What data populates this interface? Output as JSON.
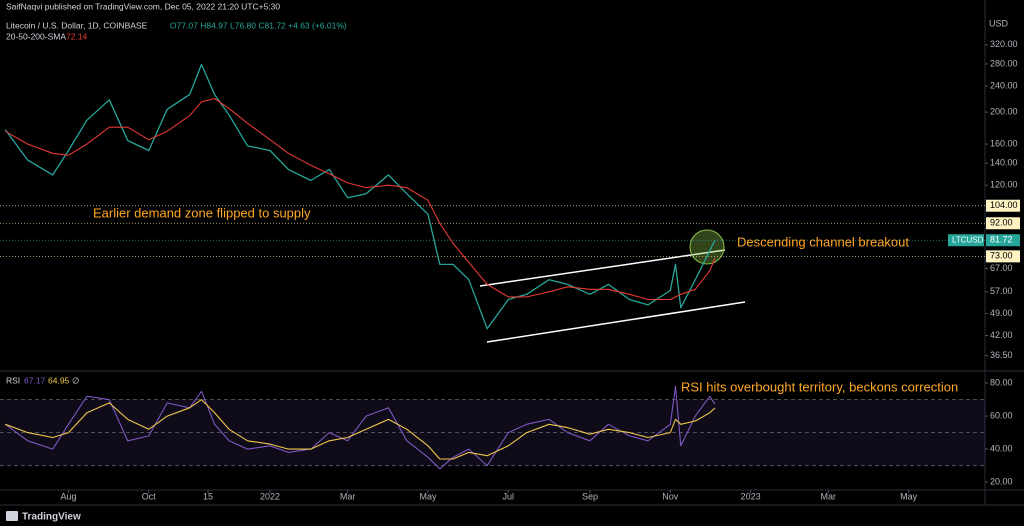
{
  "header": {
    "publisher": "SaifNaqvi published on TradingView.com, Dec 05, 2022 21:20 UTC+5:30",
    "symbol": "Litecoin / U.S. Dollar, 1D, COINBASE",
    "ohlc": "O77.07 H84.97 L76.80 C81.72 +4.63 (+6.01%)"
  },
  "currency": "USD",
  "footer": "TradingView",
  "annotations": [
    "Earlier demand zone flipped to supply",
    "Descending channel breakout",
    "RSI hits overbought territory, beckons correction"
  ],
  "chart_data": [
    {
      "type": "line",
      "log_scale": true,
      "x": [
        "2021-06-14",
        "2021-07-01",
        "2021-07-20",
        "2021-08-01",
        "2021-08-15",
        "2021-09-01",
        "2021-09-15",
        "2021-10-01",
        "2021-10-15",
        "2021-11-01",
        "2021-11-10",
        "2021-11-20",
        "2021-12-01",
        "2021-12-15",
        "2022-01-01",
        "2022-01-15",
        "2022-02-01",
        "2022-02-15",
        "2022-03-01",
        "2022-03-15",
        "2022-04-01",
        "2022-04-15",
        "2022-05-01",
        "2022-05-10",
        "2022-05-20",
        "2022-06-01",
        "2022-06-15",
        "2022-07-01",
        "2022-07-15",
        "2022-08-01",
        "2022-08-15",
        "2022-09-01",
        "2022-09-15",
        "2022-10-01",
        "2022-10-15",
        "2022-11-01",
        "2022-11-05",
        "2022-11-09",
        "2022-11-20",
        "2022-12-01",
        "2022-12-05"
      ],
      "series": [
        {
          "name": "LTCUSD",
          "color": "#26a69a",
          "values": [
            177,
            143,
            129,
            153,
            189,
            218,
            164,
            153,
            204,
            226,
            279,
            226,
            196,
            158,
            153,
            134,
            124,
            134,
            110,
            113,
            129,
            113,
            98,
            69,
            69,
            62,
            44,
            54,
            56,
            62,
            60,
            56,
            60,
            54,
            52,
            57.5,
            69,
            51,
            62,
            76,
            81.72
          ]
        },
        {
          "name": "20-50-200-SMA",
          "color": "#e53935",
          "values": [
            175,
            160,
            150,
            148,
            160,
            180,
            180,
            165,
            175,
            195,
            215,
            220,
            205,
            185,
            165,
            150,
            138,
            130,
            122,
            118,
            120,
            118,
            108,
            92,
            80,
            70,
            60,
            55,
            55,
            57,
            59,
            58,
            58,
            56,
            54,
            54,
            55,
            56,
            58,
            66,
            72.14
          ]
        }
      ],
      "levels": [
        {
          "value": 104,
          "label": "104.00"
        },
        {
          "value": 92,
          "label": "92.00"
        },
        {
          "value": 73,
          "label": "73.00"
        }
      ],
      "ylim": [
        33,
        414
      ],
      "yticks": [
        {
          "value": 320,
          "label": "320.00"
        },
        {
          "value": 280,
          "label": "280.00"
        },
        {
          "value": 240,
          "label": "240.00"
        },
        {
          "value": 200,
          "label": "200.00"
        },
        {
          "value": 160,
          "label": "160.00"
        },
        {
          "value": 140,
          "label": "140.00"
        },
        {
          "value": 120,
          "label": "120.00"
        },
        {
          "value": 67,
          "label": "67.00"
        },
        {
          "value": 57,
          "label": "57.00"
        },
        {
          "value": 49,
          "label": "49.00"
        },
        {
          "value": 42,
          "label": "42.00"
        },
        {
          "value": 36.5,
          "label": "36.50"
        }
      ],
      "xlim": [
        "2021-06-10",
        "2023-06-28"
      ],
      "xticks": [
        {
          "value": "2021-08-01",
          "label": "Aug"
        },
        {
          "value": "2021-10-01",
          "label": "Oct"
        },
        {
          "value": "2021-11-15",
          "label": "15"
        },
        {
          "value": "2022-01-01",
          "label": "2022"
        },
        {
          "value": "2022-03-01",
          "label": "Mar"
        },
        {
          "value": "2022-05-01",
          "label": "May"
        },
        {
          "value": "2022-07-01",
          "label": "Jul"
        },
        {
          "value": "2022-09-01",
          "label": "Sep"
        },
        {
          "value": "2022-11-01",
          "label": "Nov"
        },
        {
          "value": "2023-01-01",
          "label": "2023"
        },
        {
          "value": "2023-03-01",
          "label": "Mar"
        },
        {
          "value": "2023-05-01",
          "label": "May"
        }
      ]
    },
    {
      "type": "line",
      "title": "RSI",
      "source_symbol": "∅",
      "series": [
        {
          "name": "RSI",
          "color": "#7e57c2",
          "values": [
            55,
            45,
            40,
            55,
            72,
            70,
            45,
            48,
            68,
            65,
            75,
            55,
            45,
            40,
            42,
            38,
            40,
            50,
            45,
            60,
            65,
            45,
            35,
            28,
            35,
            40,
            30,
            50,
            55,
            58,
            50,
            45,
            55,
            48,
            45,
            55,
            78,
            42,
            60,
            72,
            67.17
          ]
        },
        {
          "color": "#f0c84b",
          "values": [
            55,
            50,
            47,
            50,
            62,
            68,
            58,
            52,
            60,
            65,
            70,
            62,
            52,
            45,
            43,
            40,
            40,
            45,
            47,
            52,
            58,
            52,
            42,
            34,
            34,
            38,
            36,
            42,
            50,
            55,
            53,
            49,
            52,
            50,
            47,
            50,
            58,
            55,
            57,
            62,
            64.95
          ]
        }
      ],
      "band": [
        70,
        30
      ],
      "midline": 50,
      "ylim": [
        15.2,
        86.7
      ],
      "yticks": [
        {
          "value": 80,
          "label": "80.00"
        },
        {
          "value": 60,
          "label": "60.00"
        },
        {
          "value": 40,
          "label": "40.00"
        },
        {
          "value": 20,
          "label": "20.00"
        }
      ]
    }
  ]
}
